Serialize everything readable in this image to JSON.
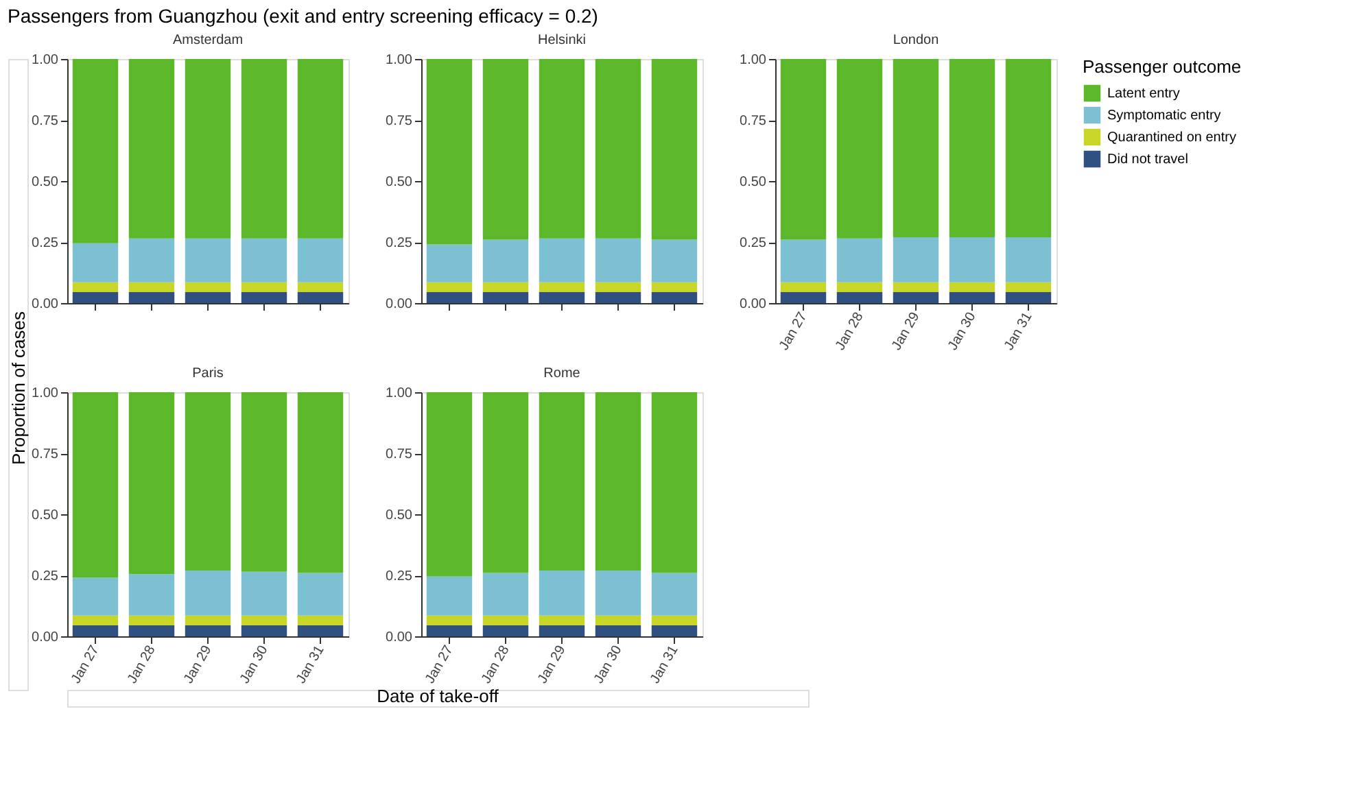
{
  "chart_data": [
    {
      "type": "bar",
      "stacked": true,
      "title": "Amsterdam",
      "annotations": [
        "Passengers from Guangzhou (exit and entry screening efficacy = 0.2)"
      ],
      "ylabel": "Proportion of cases",
      "xlabel": "Date of take-off",
      "legend_title": "Passenger outcome",
      "legend": "right",
      "tick_labels": "y",
      "categories": [
        "Jan 27",
        "Jan 28",
        "Jan 29",
        "Jan 30",
        "Jan 31"
      ],
      "ylim": [
        0,
        1
      ],
      "yticks": [
        {
          "value": 0,
          "label": "0.00"
        },
        {
          "value": 0.25,
          "label": "0.25"
        },
        {
          "value": 0.5,
          "label": "0.50"
        },
        {
          "value": 0.75,
          "label": "0.75"
        },
        {
          "value": 1,
          "label": "1.00"
        }
      ],
      "series": [
        {
          "name": "Did not travel",
          "color": "#2f5080",
          "values": [
            0.045,
            0.045,
            0.045,
            0.045,
            0.045
          ]
        },
        {
          "name": "Quarantined on entry",
          "color": "#c8d62a",
          "values": [
            0.04,
            0.04,
            0.04,
            0.04,
            0.04
          ]
        },
        {
          "name": "Symptomatic entry",
          "color": "#7cc0d2",
          "values": [
            0.16,
            0.18,
            0.18,
            0.18,
            0.18
          ]
        },
        {
          "name": "Latent entry",
          "color": "#5cb82a",
          "values": [
            0.755,
            0.735,
            0.735,
            0.735,
            0.735
          ]
        }
      ]
    },
    {
      "type": "bar",
      "stacked": true,
      "title": "Helsinki",
      "tick_labels": "y",
      "categories": [
        "Jan 27",
        "Jan 28",
        "Jan 29",
        "Jan 30",
        "Jan 31"
      ],
      "ylim": [
        0,
        1
      ],
      "yticks": [
        {
          "value": 0,
          "label": "0.00"
        },
        {
          "value": 0.25,
          "label": "0.25"
        },
        {
          "value": 0.5,
          "label": "0.50"
        },
        {
          "value": 0.75,
          "label": "0.75"
        },
        {
          "value": 1,
          "label": "1.00"
        }
      ],
      "series": [
        {
          "name": "Did not travel",
          "color": "#2f5080",
          "values": [
            0.045,
            0.045,
            0.045,
            0.045,
            0.045
          ]
        },
        {
          "name": "Quarantined on entry",
          "color": "#c8d62a",
          "values": [
            0.04,
            0.04,
            0.04,
            0.04,
            0.04
          ]
        },
        {
          "name": "Symptomatic entry",
          "color": "#7cc0d2",
          "values": [
            0.155,
            0.175,
            0.18,
            0.18,
            0.175
          ]
        },
        {
          "name": "Latent entry",
          "color": "#5cb82a",
          "values": [
            0.76,
            0.74,
            0.735,
            0.735,
            0.74
          ]
        }
      ]
    },
    {
      "type": "bar",
      "stacked": true,
      "title": "London",
      "categories": [
        "Jan 27",
        "Jan 28",
        "Jan 29",
        "Jan 30",
        "Jan 31"
      ],
      "ylim": [
        0,
        1
      ],
      "yticks": [
        {
          "value": 0,
          "label": "0.00"
        },
        {
          "value": 0.25,
          "label": "0.25"
        },
        {
          "value": 0.5,
          "label": "0.50"
        },
        {
          "value": 0.75,
          "label": "0.75"
        },
        {
          "value": 1,
          "label": "1.00"
        }
      ],
      "series": [
        {
          "name": "Did not travel",
          "color": "#2f5080",
          "values": [
            0.045,
            0.045,
            0.045,
            0.045,
            0.045
          ]
        },
        {
          "name": "Quarantined on entry",
          "color": "#c8d62a",
          "values": [
            0.04,
            0.04,
            0.04,
            0.04,
            0.04
          ]
        },
        {
          "name": "Symptomatic entry",
          "color": "#7cc0d2",
          "values": [
            0.175,
            0.18,
            0.185,
            0.185,
            0.185
          ]
        },
        {
          "name": "Latent entry",
          "color": "#5cb82a",
          "values": [
            0.74,
            0.735,
            0.73,
            0.73,
            0.73
          ]
        }
      ]
    },
    {
      "type": "bar",
      "stacked": true,
      "title": "Paris",
      "categories": [
        "Jan 27",
        "Jan 28",
        "Jan 29",
        "Jan 30",
        "Jan 31"
      ],
      "ylim": [
        0,
        1
      ],
      "yticks": [
        {
          "value": 0,
          "label": "0.00"
        },
        {
          "value": 0.25,
          "label": "0.25"
        },
        {
          "value": 0.5,
          "label": "0.50"
        },
        {
          "value": 0.75,
          "label": "0.75"
        },
        {
          "value": 1,
          "label": "1.00"
        }
      ],
      "series": [
        {
          "name": "Did not travel",
          "color": "#2f5080",
          "values": [
            0.045,
            0.045,
            0.045,
            0.045,
            0.045
          ]
        },
        {
          "name": "Quarantined on entry",
          "color": "#c8d62a",
          "values": [
            0.04,
            0.04,
            0.04,
            0.04,
            0.04
          ]
        },
        {
          "name": "Symptomatic entry",
          "color": "#7cc0d2",
          "values": [
            0.155,
            0.17,
            0.185,
            0.18,
            0.175
          ]
        },
        {
          "name": "Latent entry",
          "color": "#5cb82a",
          "values": [
            0.76,
            0.745,
            0.73,
            0.735,
            0.74
          ]
        }
      ]
    },
    {
      "type": "bar",
      "stacked": true,
      "title": "Rome",
      "categories": [
        "Jan 27",
        "Jan 28",
        "Jan 29",
        "Jan 30",
        "Jan 31"
      ],
      "ylim": [
        0,
        1
      ],
      "yticks": [
        {
          "value": 0,
          "label": "0.00"
        },
        {
          "value": 0.25,
          "label": "0.25"
        },
        {
          "value": 0.5,
          "label": "0.50"
        },
        {
          "value": 0.75,
          "label": "0.75"
        },
        {
          "value": 1,
          "label": "1.00"
        }
      ],
      "series": [
        {
          "name": "Did not travel",
          "color": "#2f5080",
          "values": [
            0.045,
            0.045,
            0.045,
            0.045,
            0.045
          ]
        },
        {
          "name": "Quarantined on entry",
          "color": "#c8d62a",
          "values": [
            0.04,
            0.04,
            0.04,
            0.04,
            0.04
          ]
        },
        {
          "name": "Symptomatic entry",
          "color": "#7cc0d2",
          "values": [
            0.16,
            0.175,
            0.185,
            0.185,
            0.175
          ]
        },
        {
          "name": "Latent entry",
          "color": "#5cb82a",
          "values": [
            0.755,
            0.74,
            0.73,
            0.73,
            0.74
          ]
        }
      ]
    }
  ]
}
